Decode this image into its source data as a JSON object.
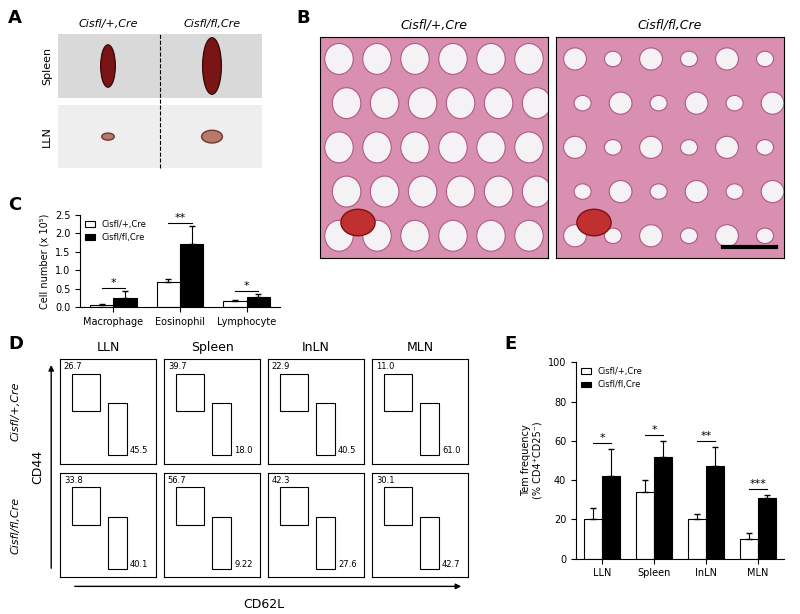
{
  "chart_data": [
    {
      "type": "image",
      "label": "A",
      "columns": [
        "Cisfl/+,Cre",
        "Cisfl/fl,Cre"
      ],
      "rows": [
        "Spleen",
        "LLN"
      ]
    },
    {
      "type": "image",
      "label": "B",
      "columns": [
        "Cisfl/+,Cre",
        "Cisfl/fl,Cre"
      ]
    },
    {
      "type": "bar",
      "label": "C",
      "y_label": "Cell number (x 10⁵)",
      "categories": [
        "Macrophage",
        "Eosinophil",
        "Lymphocyte"
      ],
      "series": [
        {
          "name": "Cisfl/+,Cre",
          "color": "#ffffff",
          "values": [
            0.05,
            0.68,
            0.15
          ],
          "errors": [
            0.02,
            0.08,
            0.04
          ]
        },
        {
          "name": "Cisfl/fl,Cre",
          "color": "#000000",
          "values": [
            0.25,
            1.72,
            0.28
          ],
          "errors": [
            0.18,
            0.48,
            0.08
          ]
        }
      ],
      "significance": [
        "*",
        "**",
        "*"
      ],
      "ylim": [
        0,
        2.5
      ],
      "yticks": [
        {
          "value": 0,
          "label": "0.0"
        },
        0.5,
        {
          "value": 1,
          "label": "1.0"
        },
        1.5,
        {
          "value": 2,
          "label": "2.0"
        },
        2.5
      ],
      "legend": "upper left"
    },
    {
      "type": "flow",
      "label": "D",
      "x_label": "CD62L",
      "y_label": "CD44",
      "categories": [
        "LLN",
        "Spleen",
        "InLN",
        "MLN"
      ],
      "series": [
        {
          "name": "Cisfl/+,Cre",
          "upper": [
            26.7,
            39.7,
            22.9,
            11.0
          ],
          "lower": [
            45.5,
            18.0,
            40.5,
            61.0
          ]
        },
        {
          "name": "Cisfl/fl,Cre",
          "upper": [
            33.8,
            56.7,
            42.3,
            30.1
          ],
          "lower": [
            40.1,
            9.22,
            27.6,
            42.7
          ]
        }
      ],
      "tick_labels": false
    },
    {
      "type": "bar",
      "label": "E",
      "y_label": "Tem frequency\n(% CD4⁺CD25⁻)",
      "categories": [
        "LLN",
        "Spleen",
        "InLN",
        "MLN"
      ],
      "series": [
        {
          "name": "Cisfl/+,Cre",
          "color": "#ffffff",
          "values": [
            20,
            34,
            20,
            10
          ],
          "errors": [
            6,
            6,
            3,
            3
          ]
        },
        {
          "name": "Cisfl/fl,Cre",
          "color": "#000000",
          "values": [
            42,
            52,
            47,
            31
          ],
          "errors": [
            14,
            8,
            10,
            1.5
          ]
        }
      ],
      "significance": [
        "*",
        "*",
        "**",
        "***"
      ],
      "ylim": [
        0,
        100
      ],
      "yticks": [
        0,
        20,
        40,
        60,
        80,
        100
      ],
      "legend": "upper left"
    }
  ]
}
